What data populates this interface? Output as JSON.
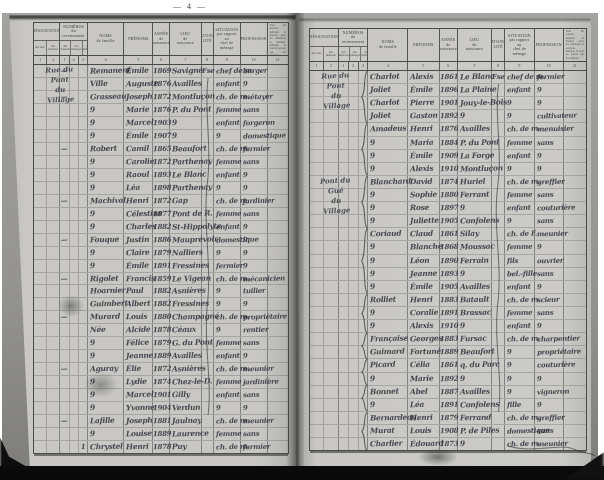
{
  "scan": {
    "page_number": "— 4 —",
    "paper_color": "#c8c7c3",
    "ink_color": "#30303c",
    "background_color": "#0a0a0a"
  },
  "header": {
    "designation_title": "DÉSIGNATION",
    "designation_subs": [
      "des rues",
      "des maisons"
    ],
    "numeros_title": "NUMÉROS\ndu recensement",
    "numeros_subs": [
      "des\nmaisons",
      "des\nménages",
      "des\nindividus"
    ],
    "noms_title": "NOMS\nde famille",
    "prenoms_title": "PRÉNOMS",
    "annee_title": "ANNÉE\nde\nnaissance",
    "lieu_title": "LIEU\nde\nnaissance",
    "nationalite_title": "NATIONA-\nLITÉ",
    "situation_title": "SITUATION\npar rapport\nau\nchef de ménage",
    "profession_title": "PROFESSION",
    "observations_note": "Pour les patrons, indiquer la maison ; pour les employés et ouvriers, indiquer le nom du patron qui les emploie.",
    "column_numbers": [
      "1",
      "2",
      "1",
      "2",
      "3",
      "4",
      "5",
      "6",
      "7",
      "8",
      "9",
      "10",
      "11"
    ]
  },
  "pages": [
    {
      "side": "left",
      "street_blocks": [
        {
          "row": 0,
          "text": "Rue du\nPont\ndu\nVillage"
        }
      ],
      "braces": [],
      "wavy": {
        "start": 1,
        "end": 27
      },
      "rows": [
        {
          "n1": "—",
          "noms": "Remanent",
          "pren": "Émile",
          "an": "1869",
          "lieu": "Savigné",
          "nat": "Fse",
          "sit": "chef de m.",
          "prof": "berger"
        },
        {
          "noms": "Ville",
          "pren": "Auguste",
          "an": "1876",
          "lieu": "Availles",
          "sit": "enfant",
          "prof": "9"
        },
        {
          "n1": "—",
          "noms": "Grasseau",
          "pren": "Joseph",
          "an": "1872",
          "lieu": "Montluçon",
          "sit": "ch. de m.",
          "prof": "métayer"
        },
        {
          "noms": "9",
          "pren": "Marie",
          "an": "1876",
          "lieu": "P. du Pont",
          "sit": "femme",
          "prof": "sans"
        },
        {
          "noms": "9",
          "pren": "Marcel",
          "an": "1903",
          "lieu": "9",
          "sit": "enfant",
          "prof": "forgeron"
        },
        {
          "noms": "9",
          "pren": "Émile",
          "an": "1907",
          "lieu": "9",
          "sit": "9",
          "prof": "domestique"
        },
        {
          "n1": "—",
          "noms": "Robert",
          "pren": "Camil",
          "an": "1865",
          "lieu": "Beaufort",
          "sit": "ch. de m.",
          "prof": "fermier"
        },
        {
          "noms": "9",
          "pren": "Carolie",
          "an": "1872",
          "lieu": "Parthenay",
          "sit": "femme",
          "prof": "sans"
        },
        {
          "noms": "9",
          "pren": "Raoul",
          "an": "1893",
          "lieu": "Le Blanc",
          "sit": "enfant",
          "prof": "9"
        },
        {
          "noms": "9",
          "pren": "Léa",
          "an": "1898",
          "lieu": "Parthenay",
          "sit": "9",
          "prof": "9"
        },
        {
          "n1": "—",
          "noms": "Machival",
          "pren": "Henri",
          "an": "1872",
          "lieu": "Gap",
          "sit": "ch. de m.",
          "prof": "jardinier"
        },
        {
          "noms": "9",
          "pren": "Célestine",
          "an": "1877",
          "lieu": "Pont de R.",
          "sit": "femme",
          "prof": "sans"
        },
        {
          "noms": "9",
          "pren": "Charles",
          "an": "1882",
          "lieu": "St-Hippolyte",
          "sit": "enfant",
          "prof": "9"
        },
        {
          "n1": "—",
          "noms": "Fouque",
          "pren": "Justin",
          "an": "1886",
          "lieu": "Mauprévoir",
          "sit": "domestique",
          "prof": "9"
        },
        {
          "noms": "9",
          "pren": "Claire",
          "an": "1879",
          "lieu": "Nalliers",
          "sit": "9",
          "prof": "9"
        },
        {
          "noms": "9",
          "pren": "Émile",
          "an": "1891",
          "lieu": "Fressines",
          "sit": "fermier",
          "prof": "9"
        },
        {
          "n1": "—",
          "noms": "Rigolet",
          "pren": "Francis",
          "an": "1859",
          "lieu": "Le Vigean",
          "sit": "ch. de m.",
          "prof": "mécanicien"
        },
        {
          "noms": "Hoarnier",
          "pren": "Paul",
          "an": "1882",
          "lieu": "Asnières",
          "sit": "9",
          "prof": "tuilier"
        },
        {
          "noms": "Guimbert",
          "pren": "Albert",
          "an": "1882",
          "lieu": "Fressines",
          "sit": "9",
          "prof": "9"
        },
        {
          "n1": "—",
          "noms": "Murard",
          "pren": "Louis",
          "an": "1880",
          "lieu": "Champagné",
          "sit": "ch. de m.",
          "prof": "propriétaire"
        },
        {
          "noms": "Née",
          "pren": "Alcide",
          "an": "1878",
          "lieu": "Céaux",
          "sit": "9",
          "prof": "rentier"
        },
        {
          "noms": "9",
          "pren": "Félice",
          "an": "1879",
          "lieu": "G. du Pont",
          "sit": "femme",
          "prof": "sans"
        },
        {
          "noms": "9",
          "pren": "Jeanne",
          "an": "1889",
          "lieu": "Availles",
          "sit": "enfant",
          "prof": "9"
        },
        {
          "n1": "—",
          "noms": "Aguray",
          "pren": "Élie",
          "an": "1872",
          "lieu": "Asnières",
          "sit": "ch. de m.",
          "prof": "meunier"
        },
        {
          "noms": "9",
          "pren": "Lydie",
          "an": "1874",
          "lieu": "Chez-le-D.",
          "sit": "femme",
          "prof": "jardinière"
        },
        {
          "noms": "9",
          "pren": "Marcel",
          "an": "1901",
          "lieu": "Gilly",
          "sit": "enfant",
          "prof": "sans"
        },
        {
          "noms": "9",
          "pren": "Yvonne",
          "an": "1904",
          "lieu": "Verdun",
          "sit": "9",
          "prof": "9"
        },
        {
          "n1": "—",
          "noms": "Lafille",
          "pren": "Joseph",
          "an": "1881",
          "lieu": "Jaulnay",
          "sit": "ch. de m.",
          "prof": "meunier"
        },
        {
          "noms": "9",
          "pren": "Louise",
          "an": "1889",
          "lieu": "Laurence",
          "sit": "femme",
          "prof": "sans"
        },
        {
          "n3": "1",
          "noms": "Chrystel",
          "pren": "Henri",
          "an": "1878",
          "lieu": "Puy",
          "sit": "ch. de m.",
          "prof": "fermier"
        }
      ]
    },
    {
      "side": "right",
      "street_blocks": [
        {
          "row": 0,
          "text": "Rue du\nPont\ndu\nVillage"
        },
        {
          "row": 8,
          "text": "Pont du\nGué\ndu\nVillage"
        }
      ],
      "braces": [
        {
          "start": 0,
          "len": 4
        },
        {
          "start": 4,
          "len": 4
        },
        {
          "start": 8,
          "len": 4
        },
        {
          "start": 12,
          "len": 5
        },
        {
          "start": 17,
          "len": 3
        },
        {
          "start": 20,
          "len": 2
        },
        {
          "start": 22,
          "len": 2
        },
        {
          "start": 24,
          "len": 2
        },
        {
          "start": 26,
          "len": 3
        }
      ],
      "wavy": {
        "start": 1,
        "end": 26
      },
      "rows": [
        {
          "noms": "Charlot",
          "pren": "Alexis",
          "an": "1861",
          "lieu": "Le Blanc",
          "nat": "Fse",
          "sit": "chef de m.",
          "prof": "fermier"
        },
        {
          "noms": "Joliet",
          "pren": "Émile",
          "an": "1896",
          "lieu": "La Plaine",
          "sit": "enfant",
          "prof": "9"
        },
        {
          "noms": "Charlot",
          "pren": "Pierre",
          "an": "1901",
          "lieu": "Jouy-le-Bois",
          "sit": "9",
          "prof": "9"
        },
        {
          "noms": "Joliet",
          "pren": "Gaston",
          "an": "1892",
          "lieu": "9",
          "sit": "9",
          "prof": "cultivateur"
        },
        {
          "noms": "Amadeus",
          "pren": "Henri",
          "an": "1876",
          "lieu": "Availles",
          "sit": "ch. de m.",
          "prof": "menuisier"
        },
        {
          "noms": "9",
          "pren": "Maria",
          "an": "1884",
          "lieu": "P. du Pont",
          "sit": "femme",
          "prof": "sans"
        },
        {
          "noms": "9",
          "pren": "Émile",
          "an": "1909",
          "lieu": "La Forge",
          "sit": "enfant",
          "prof": "9"
        },
        {
          "noms": "9",
          "pren": "Alexis",
          "an": "1910",
          "lieu": "Montluçon",
          "sit": "9",
          "prof": "9"
        },
        {
          "noms": "Blanchard",
          "pren": "David",
          "an": "1874",
          "lieu": "Huriel",
          "sit": "ch. de m.",
          "prof": "greffier"
        },
        {
          "noms": "9",
          "pren": "Sophie",
          "an": "1880",
          "lieu": "Ferrant",
          "sit": "femme",
          "prof": "sans"
        },
        {
          "noms": "9",
          "pren": "Rose",
          "an": "1897",
          "lieu": "9",
          "sit": "enfant",
          "prof": "couturière"
        },
        {
          "noms": "9",
          "pren": "Juliette",
          "an": "1905",
          "lieu": "Confolens",
          "sit": "9",
          "prof": "sans"
        },
        {
          "noms": "Coriaud",
          "pren": "Claud",
          "an": "1861",
          "lieu": "Silay",
          "sit": "ch. de F.",
          "prof": "meunier"
        },
        {
          "noms": "9",
          "pren": "Blanche",
          "an": "1868",
          "lieu": "Moussac",
          "sit": "femme",
          "prof": "9"
        },
        {
          "noms": "9",
          "pren": "Léon",
          "an": "1890",
          "lieu": "Ferrain",
          "sit": "fils",
          "prof": "ouvrier"
        },
        {
          "noms": "9",
          "pren": "Jeanne",
          "an": "1893",
          "lieu": "9",
          "sit": "bel.-fille",
          "prof": "sans"
        },
        {
          "noms": "9",
          "pren": "Émile",
          "an": "1905",
          "lieu": "Availles",
          "sit": "enfant",
          "prof": "9"
        },
        {
          "noms": "Rolliet",
          "pren": "Henri",
          "an": "1883",
          "lieu": "Batault",
          "sit": "ch. de m.",
          "prof": "scieur"
        },
        {
          "noms": "9",
          "pren": "Coralie",
          "an": "1891",
          "lieu": "Brassac",
          "sit": "femme",
          "prof": "sans"
        },
        {
          "noms": "9",
          "pren": "Alexis",
          "an": "1910",
          "lieu": "9",
          "sit": "enfant",
          "prof": "9"
        },
        {
          "noms": "Française",
          "pren": "Georges",
          "an": "1883",
          "lieu": "Fursac",
          "sit": "ch. de m.",
          "prof": "charpentier"
        },
        {
          "noms": "Guimard",
          "pren": "Fortuné",
          "an": "1889",
          "lieu": "Beaufort",
          "sit": "9",
          "prof": "propriétaire"
        },
        {
          "noms": "Picard",
          "pren": "Célia",
          "an": "1861",
          "lieu": "q. du Parc",
          "sit": "9",
          "prof": "couturière"
        },
        {
          "noms": "9",
          "pren": "Marie",
          "an": "1892",
          "lieu": "9",
          "sit": "9",
          "prof": "9"
        },
        {
          "noms": "Bonnet",
          "pren": "Abel",
          "an": "1887",
          "lieu": "Availles",
          "sit": "9",
          "prof": "vigneron"
        },
        {
          "noms": "9",
          "pren": "Léa",
          "an": "1891",
          "lieu": "Confolens",
          "sit": "fille",
          "prof": "9"
        },
        {
          "noms": "Bernardeau",
          "pren": "Henri",
          "an": "1879",
          "lieu": "Ferrand",
          "sit": "ch. de m.",
          "prof": "greffier"
        },
        {
          "noms": "Murat",
          "pren": "Louis",
          "an": "1908",
          "lieu": "P. de Piles",
          "sit": "domestique",
          "prof": "sans"
        },
        {
          "noms": "Charlier",
          "pren": "Édouard",
          "an": "1873",
          "lieu": "9",
          "sit": "ch. de m.",
          "prof": "meunier"
        }
      ]
    }
  ]
}
